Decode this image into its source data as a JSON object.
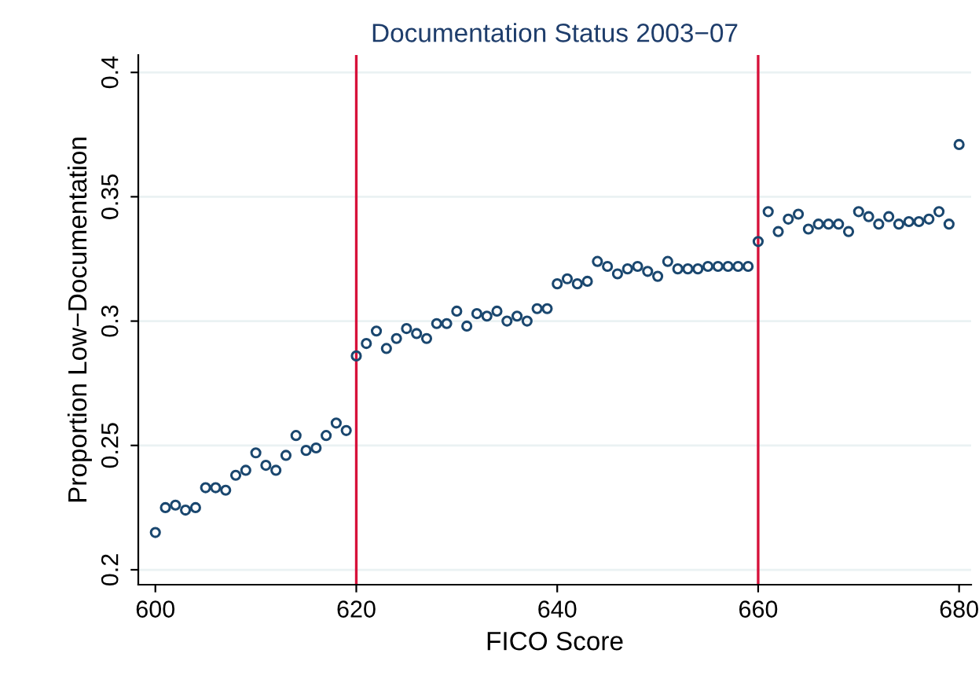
{
  "chart_data": {
    "type": "scatter",
    "title": "Documentation Status 2003−07",
    "xlabel": "FICO Score",
    "ylabel": "Proportion Low−Documentation",
    "x": [
      600,
      601,
      602,
      603,
      604,
      605,
      606,
      607,
      608,
      609,
      610,
      611,
      612,
      613,
      614,
      615,
      616,
      617,
      618,
      619,
      620,
      621,
      622,
      623,
      624,
      625,
      626,
      627,
      628,
      629,
      630,
      631,
      632,
      633,
      634,
      635,
      636,
      637,
      638,
      639,
      640,
      641,
      642,
      643,
      644,
      645,
      646,
      647,
      648,
      649,
      650,
      651,
      652,
      653,
      654,
      655,
      656,
      657,
      658,
      659,
      660,
      661,
      662,
      663,
      664,
      665,
      666,
      667,
      668,
      669,
      670,
      671,
      672,
      673,
      674,
      675,
      676,
      677,
      678,
      679,
      680
    ],
    "series": [
      {
        "color": "#1a476f",
        "values": [
          0.215,
          0.225,
          0.226,
          0.224,
          0.225,
          0.233,
          0.233,
          0.232,
          0.238,
          0.24,
          0.247,
          0.242,
          0.24,
          0.246,
          0.254,
          0.248,
          0.249,
          0.254,
          0.259,
          0.256,
          0.286,
          0.291,
          0.296,
          0.289,
          0.293,
          0.297,
          0.295,
          0.293,
          0.299,
          0.299,
          0.304,
          0.298,
          0.303,
          0.302,
          0.304,
          0.3,
          0.302,
          0.3,
          0.305,
          0.305,
          0.315,
          0.317,
          0.315,
          0.316,
          0.324,
          0.322,
          0.319,
          0.321,
          0.322,
          0.32,
          0.318,
          0.324,
          0.321,
          0.321,
          0.321,
          0.322,
          0.322,
          0.322,
          0.322,
          0.322,
          0.332,
          0.344,
          0.336,
          0.341,
          0.343,
          0.337,
          0.339,
          0.339,
          0.339,
          0.336,
          0.344,
          0.342,
          0.339,
          0.342,
          0.339,
          0.34,
          0.34,
          0.341,
          0.344,
          0.339,
          0.371
        ]
      }
    ],
    "xlim": [
      598.3,
      681.2
    ],
    "xticks": [
      600,
      620,
      640,
      660,
      680
    ],
    "ylim": [
      0.194,
      0.407
    ],
    "yticks": [
      0.2,
      0.25,
      0.3,
      0.35,
      0.4
    ],
    "ref_lines": [
      {
        "axis": "x",
        "value": 620,
        "color": "#d7113a"
      },
      {
        "axis": "x",
        "value": 660,
        "color": "#d7113a"
      }
    ],
    "grid": "y",
    "marker": "circle",
    "legend": false
  }
}
